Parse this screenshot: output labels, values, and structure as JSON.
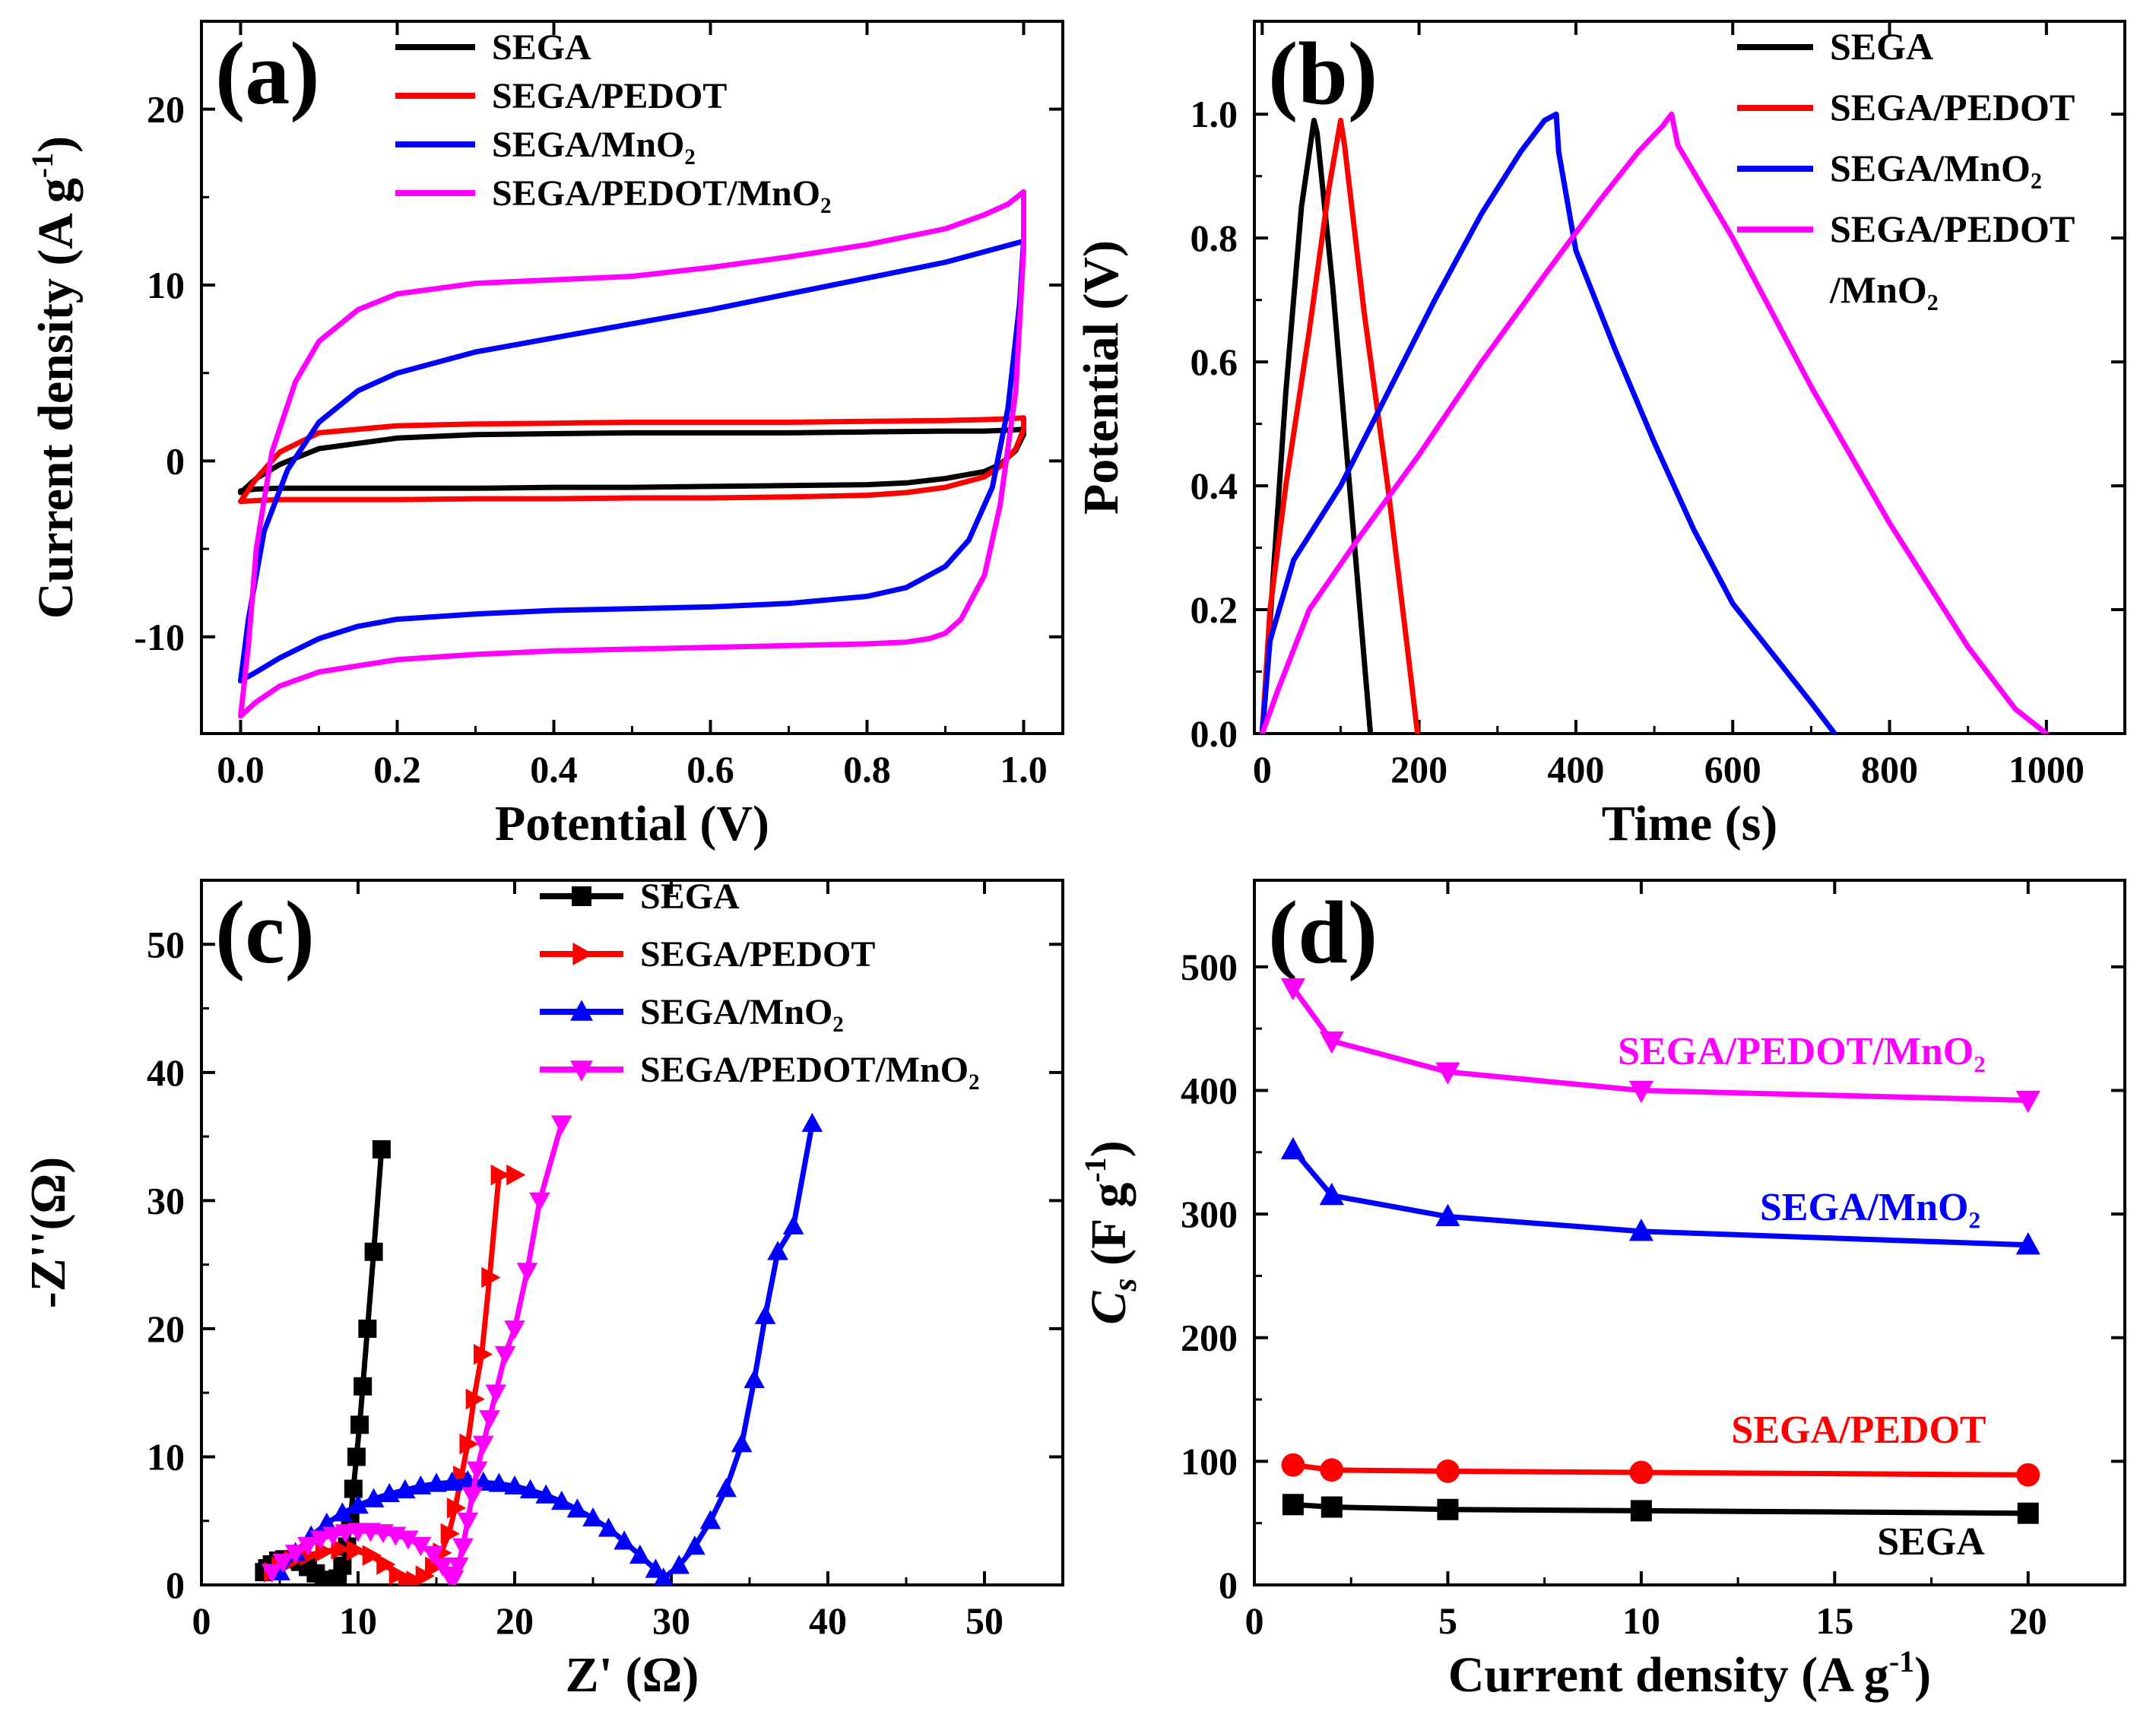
{
  "chart_data": [
    {
      "panel": "(a)",
      "type": "line",
      "xlabel": "Potential (V)",
      "ylabel": "Current density (A g",
      "ylabel_sup": "-1",
      "ylabel_tail": ")",
      "xlim": [
        -0.05,
        1.05
      ],
      "ylim": [
        -15.5,
        25
      ],
      "xticks": [
        0.0,
        0.2,
        0.4,
        0.6,
        0.8,
        1.0
      ],
      "xtick_labels": [
        "0.0",
        "0.2",
        "0.4",
        "0.6",
        "0.8",
        "1.0"
      ],
      "yticks": [
        -10,
        0,
        10,
        20
      ],
      "ytick_labels": [
        "-10",
        "0",
        "10",
        "20"
      ],
      "legend_position": "top-right",
      "series": [
        {
          "name": "SEGA",
          "color": "#000000",
          "x": [
            0,
            0.02,
            0.05,
            0.1,
            0.2,
            0.3,
            0.4,
            0.5,
            0.6,
            0.7,
            0.8,
            0.9,
            0.95,
            0.98,
            1.0,
            1.0,
            0.99,
            0.97,
            0.95,
            0.9,
            0.85,
            0.8,
            0.7,
            0.6,
            0.5,
            0.4,
            0.3,
            0.2,
            0.1,
            0.05,
            0.02,
            0.0,
            0
          ],
          "y": [
            -1.8,
            -1.0,
            -0.2,
            0.7,
            1.3,
            1.5,
            1.55,
            1.6,
            1.6,
            1.6,
            1.65,
            1.7,
            1.7,
            1.75,
            1.8,
            1.5,
            0.6,
            -0.2,
            -0.6,
            -1.0,
            -1.25,
            -1.35,
            -1.4,
            -1.45,
            -1.5,
            -1.5,
            -1.55,
            -1.55,
            -1.55,
            -1.55,
            -1.6,
            -1.7,
            -1.8
          ]
        },
        {
          "name": "SEGA/PEDOT",
          "color": "#ff0000",
          "x": [
            0,
            0.02,
            0.05,
            0.1,
            0.2,
            0.3,
            0.4,
            0.5,
            0.6,
            0.7,
            0.8,
            0.9,
            0.95,
            0.98,
            1.0,
            1.0,
            0.99,
            0.97,
            0.95,
            0.9,
            0.85,
            0.8,
            0.7,
            0.6,
            0.5,
            0.4,
            0.3,
            0.2,
            0.1,
            0.05,
            0.02,
            0.0,
            0
          ],
          "y": [
            -2.3,
            -1.0,
            0.5,
            1.6,
            2.0,
            2.1,
            2.15,
            2.2,
            2.2,
            2.2,
            2.25,
            2.3,
            2.35,
            2.4,
            2.45,
            1.8,
            0.7,
            -0.3,
            -0.9,
            -1.5,
            -1.8,
            -1.95,
            -2.05,
            -2.1,
            -2.1,
            -2.15,
            -2.15,
            -2.2,
            -2.2,
            -2.2,
            -2.25,
            -2.3,
            -2.3
          ]
        },
        {
          "name": "SEGA/MnO₂",
          "color": "#0000ff",
          "x": [
            0,
            0.01,
            0.03,
            0.06,
            0.1,
            0.15,
            0.2,
            0.3,
            0.4,
            0.5,
            0.6,
            0.7,
            0.8,
            0.9,
            0.95,
            1.0,
            0.995,
            0.98,
            0.96,
            0.93,
            0.9,
            0.85,
            0.8,
            0.7,
            0.6,
            0.5,
            0.4,
            0.3,
            0.2,
            0.15,
            0.1,
            0.05,
            0.02,
            0.0
          ],
          "y": [
            -12.5,
            -9.0,
            -4.0,
            -0.5,
            2.2,
            4.0,
            5.0,
            6.2,
            7.0,
            7.8,
            8.6,
            9.5,
            10.4,
            11.3,
            11.9,
            12.5,
            9.0,
            3.0,
            -1.5,
            -4.5,
            -6.0,
            -7.2,
            -7.7,
            -8.1,
            -8.3,
            -8.4,
            -8.5,
            -8.7,
            -9.0,
            -9.4,
            -10.1,
            -11.2,
            -12.0,
            -12.5
          ]
        },
        {
          "name": "SEGA/PEDOT/MnO₂",
          "color": "#ff00ff",
          "x": [
            0,
            0.01,
            0.02,
            0.04,
            0.07,
            0.1,
            0.15,
            0.2,
            0.3,
            0.4,
            0.5,
            0.6,
            0.7,
            0.8,
            0.9,
            0.95,
            0.98,
            1.0,
            1.0,
            0.99,
            0.97,
            0.95,
            0.92,
            0.9,
            0.88,
            0.85,
            0.8,
            0.7,
            0.6,
            0.5,
            0.4,
            0.3,
            0.2,
            0.1,
            0.05,
            0.02,
            0.0
          ],
          "y": [
            -14.5,
            -10.5,
            -5.0,
            0.5,
            4.5,
            6.8,
            8.6,
            9.5,
            10.1,
            10.3,
            10.5,
            11.0,
            11.6,
            12.3,
            13.2,
            14.0,
            14.6,
            15.3,
            12.0,
            4.0,
            -2.5,
            -6.5,
            -9.0,
            -9.8,
            -10.1,
            -10.3,
            -10.4,
            -10.5,
            -10.6,
            -10.7,
            -10.8,
            -11.0,
            -11.3,
            -12.0,
            -12.8,
            -13.7,
            -14.5
          ]
        }
      ]
    },
    {
      "panel": "(b)",
      "type": "line",
      "xlabel": "Time (s)",
      "ylabel": "Potential (V)",
      "xlim": [
        -10,
        1100
      ],
      "ylim": [
        0,
        1.15
      ],
      "xticks": [
        0,
        200,
        400,
        600,
        800,
        1000
      ],
      "xtick_labels": [
        "0",
        "200",
        "400",
        "600",
        "800",
        "1000"
      ],
      "yticks": [
        0.0,
        0.2,
        0.4,
        0.6,
        0.8,
        1.0
      ],
      "ytick_labels": [
        "0.0",
        "0.2",
        "0.4",
        "0.6",
        "0.8",
        "1.0"
      ],
      "legend_position": "top-right",
      "series": [
        {
          "name": "SEGA",
          "color": "#000000",
          "x": [
            0,
            10,
            30,
            50,
            66,
            70,
            90,
            110,
            130,
            138
          ],
          "y": [
            0,
            0.18,
            0.55,
            0.85,
            0.99,
            0.97,
            0.72,
            0.42,
            0.12,
            0
          ]
        },
        {
          "name": "SEGA/PEDOT",
          "color": "#ff0000",
          "x": [
            0,
            10,
            30,
            60,
            85,
            100,
            105,
            130,
            160,
            185,
            198
          ],
          "y": [
            0,
            0.2,
            0.4,
            0.65,
            0.88,
            0.99,
            0.95,
            0.68,
            0.4,
            0.14,
            0
          ]
        },
        {
          "name": "SEGA/MnO₂",
          "color": "#0000ff",
          "x": [
            0,
            10,
            40,
            100,
            160,
            220,
            280,
            330,
            360,
            375,
            378,
            400,
            450,
            500,
            550,
            600,
            650,
            700,
            730
          ],
          "y": [
            0,
            0.15,
            0.28,
            0.4,
            0.55,
            0.7,
            0.84,
            0.94,
            0.99,
            1.0,
            0.94,
            0.78,
            0.62,
            0.47,
            0.33,
            0.21,
            0.13,
            0.05,
            0
          ]
        },
        {
          "name": "SEGA/PEDOT",
          "name2": "/MnO₂",
          "color": "#ff00ff",
          "x": [
            0,
            20,
            60,
            120,
            200,
            280,
            360,
            430,
            480,
            510,
            522,
            530,
            600,
            700,
            800,
            900,
            960,
            1000
          ],
          "y": [
            0,
            0.07,
            0.2,
            0.31,
            0.45,
            0.6,
            0.74,
            0.86,
            0.94,
            0.98,
            1.0,
            0.95,
            0.8,
            0.56,
            0.34,
            0.14,
            0.04,
            0
          ]
        }
      ]
    },
    {
      "panel": "(c)",
      "type": "scatter",
      "xlabel": "Z' (Ω)",
      "ylabel": "-Z''(Ω)",
      "xlim": [
        0,
        55
      ],
      "ylim": [
        0,
        55
      ],
      "xticks": [
        0,
        10,
        20,
        30,
        40,
        50
      ],
      "xtick_labels": [
        "0",
        "10",
        "20",
        "30",
        "40",
        "50"
      ],
      "yticks": [
        0,
        10,
        20,
        30,
        40,
        50
      ],
      "ytick_labels": [
        "0",
        "10",
        "20",
        "30",
        "40",
        "50"
      ],
      "legend_position": "top-right",
      "series": [
        {
          "name": "SEGA",
          "color": "#000000",
          "marker": "square",
          "x": [
            4.0,
            4.2,
            4.5,
            4.9,
            5.3,
            5.8,
            6.3,
            6.8,
            7.3,
            7.8,
            8.3,
            8.7,
            9.0,
            9.3,
            9.5,
            9.7,
            9.9,
            10.1,
            10.3,
            10.6,
            11.0,
            11.5
          ],
          "y": [
            1.0,
            1.3,
            1.6,
            1.9,
            2.0,
            2.0,
            1.8,
            1.4,
            0.9,
            0.4,
            0.2,
            0.5,
            1.5,
            3.0,
            5.0,
            7.5,
            10.0,
            12.5,
            15.5,
            20.0,
            26.0,
            34.0
          ]
        },
        {
          "name": "SEGA/PEDOT",
          "color": "#ff0000",
          "marker": "triangle-right",
          "x": [
            4.5,
            5.0,
            5.8,
            6.8,
            7.8,
            8.8,
            9.8,
            10.8,
            11.7,
            12.5,
            13.1,
            13.6,
            14.2,
            14.8,
            15.3,
            15.8,
            16.2,
            16.6,
            17.0,
            17.4,
            17.9,
            18.4,
            19.0,
            20.0
          ],
          "y": [
            1.0,
            1.4,
            1.9,
            2.3,
            2.6,
            2.8,
            2.7,
            2.3,
            1.6,
            0.8,
            0.3,
            0.3,
            0.7,
            1.4,
            2.5,
            4.0,
            6.0,
            8.5,
            11.0,
            14.5,
            18.0,
            24.0,
            32.0,
            32.0
          ]
        },
        {
          "name": "SEGA/MnO₂",
          "color": "#0000ff",
          "marker": "triangle-up",
          "x": [
            5.0,
            6.0,
            7.0,
            8.0,
            9.0,
            10.0,
            11.0,
            12.0,
            13.0,
            14.0,
            15.0,
            16.0,
            17.0,
            18.0,
            19.0,
            20.0,
            21.0,
            22.0,
            23.0,
            24.0,
            25.0,
            26.0,
            27.0,
            28.0,
            29.0,
            29.5,
            30.5,
            31.5,
            32.5,
            33.5,
            34.5,
            35.3,
            36.0,
            36.8,
            37.8,
            39.0
          ],
          "y": [
            1.0,
            2.5,
            3.8,
            4.8,
            5.6,
            6.2,
            6.7,
            7.1,
            7.4,
            7.7,
            7.9,
            8.0,
            8.1,
            8.0,
            7.9,
            7.7,
            7.4,
            7.0,
            6.5,
            5.9,
            5.2,
            4.4,
            3.4,
            2.3,
            1.2,
            0.5,
            1.5,
            3.0,
            5.0,
            7.5,
            11.0,
            16.0,
            21.0,
            26.0,
            28.0,
            36.0
          ]
        },
        {
          "name": "SEGA/PEDOT/MnO₂",
          "color": "#ff00ff",
          "marker": "triangle-down",
          "x": [
            4.5,
            5.2,
            6.0,
            6.8,
            7.6,
            8.4,
            9.2,
            10.0,
            10.8,
            11.6,
            12.4,
            13.2,
            14.0,
            14.8,
            15.4,
            15.8,
            16.1,
            16.4,
            16.7,
            17.0,
            17.3,
            17.6,
            18.0,
            18.4,
            18.8,
            19.4,
            20.0,
            20.8,
            21.6,
            23.0
          ],
          "y": [
            1.0,
            1.8,
            2.5,
            3.1,
            3.6,
            3.9,
            4.1,
            4.2,
            4.2,
            4.1,
            3.9,
            3.6,
            3.1,
            2.4,
            1.5,
            0.8,
            0.5,
            1.5,
            3.0,
            5.0,
            7.0,
            9.0,
            11.0,
            13.0,
            15.0,
            18.0,
            20.0,
            24.5,
            30.0,
            36.0
          ]
        }
      ]
    },
    {
      "panel": "(d)",
      "type": "line",
      "xlabel": "Current density (A g",
      "xlabel_sup": "-1",
      "xlabel_tail": ")",
      "ylabel_italic": "C",
      "ylabel_sub": "s",
      "ylabel": " (F g",
      "ylabel_sup": "-1",
      "ylabel_tail": ")",
      "xlim": [
        0,
        22.5
      ],
      "ylim": [
        0,
        570
      ],
      "xticks": [
        0,
        5,
        10,
        15,
        20
      ],
      "xtick_labels": [
        "0",
        "5",
        "10",
        "15",
        "20"
      ],
      "yticks": [
        0,
        100,
        200,
        300,
        400,
        500
      ],
      "ytick_labels": [
        "0",
        "100",
        "200",
        "300",
        "400",
        "500"
      ],
      "legend_position": "inline labels",
      "categories_x": [
        1,
        2,
        5,
        10,
        20
      ],
      "series": [
        {
          "name": "SEGA",
          "color": "#000000",
          "marker": "square",
          "values": [
            65,
            63,
            61,
            60,
            58
          ]
        },
        {
          "name": "SEGA/PEDOT",
          "color": "#ff0000",
          "marker": "circle",
          "values": [
            97,
            93,
            92,
            91,
            89
          ]
        },
        {
          "name": "SEGA/MnO₂",
          "color": "#0000ff",
          "marker": "triangle-up",
          "values": [
            352,
            315,
            298,
            286,
            275
          ]
        },
        {
          "name": "SEGA/PEDOT/MnO₂",
          "color": "#ff00ff",
          "marker": "triangle-down",
          "values": [
            483,
            440,
            415,
            400,
            392
          ]
        }
      ]
    }
  ]
}
